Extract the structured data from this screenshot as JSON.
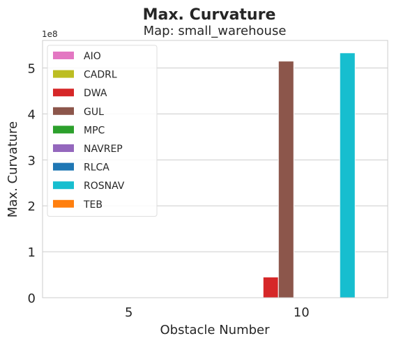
{
  "chart_data": {
    "type": "bar",
    "title": "Max. Curvature",
    "subtitle": "Map: small_warehouse",
    "xlabel": "Obstacle Number",
    "ylabel": "Max. Curvature",
    "y_offset_label": "1e8",
    "y_scale": 100000000,
    "categories": [
      "5",
      "10"
    ],
    "ylim": [
      0,
      560000000
    ],
    "yticks": [
      0,
      1,
      2,
      3,
      4,
      5
    ],
    "grid": true,
    "legend_placement": "top-left",
    "series": [
      {
        "name": "AIO",
        "color": "#e377c2",
        "values": [
          0,
          0
        ]
      },
      {
        "name": "CADRL",
        "color": "#bcbd22",
        "values": [
          0,
          0
        ]
      },
      {
        "name": "DWA",
        "color": "#d62728",
        "values": [
          0,
          45000000
        ]
      },
      {
        "name": "GUL",
        "color": "#8c564b",
        "values": [
          0,
          515000000
        ]
      },
      {
        "name": "MPC",
        "color": "#2ca02c",
        "values": [
          0,
          0
        ]
      },
      {
        "name": "NAVREP",
        "color": "#9467bd",
        "values": [
          0,
          0
        ]
      },
      {
        "name": "RLCA",
        "color": "#1f77b4",
        "values": [
          0,
          0
        ]
      },
      {
        "name": "ROSNAV",
        "color": "#17becf",
        "values": [
          0,
          533000000
        ]
      },
      {
        "name": "TEB",
        "color": "#ff7f0e",
        "values": [
          0,
          0
        ]
      }
    ]
  }
}
